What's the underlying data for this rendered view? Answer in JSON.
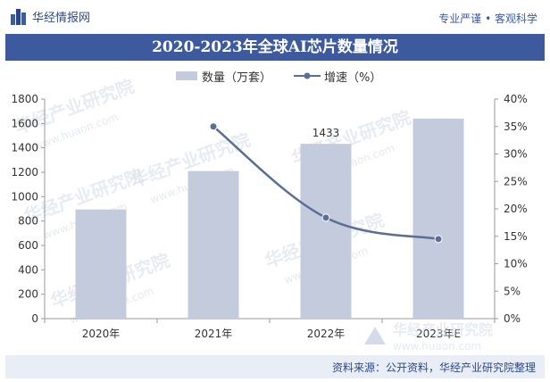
{
  "header": {
    "brand": "华经情报网",
    "slogan": "专业严谨 • 客观科学"
  },
  "colors": {
    "title_band": "#3d5a9e",
    "bar": "#c4cbdc",
    "line": "#5b6e96",
    "source_band": "#e9edf5"
  },
  "chart_data": {
    "type": "bar",
    "title": "2020-2023年全球AI芯片数量情况",
    "categories": [
      "2020年",
      "2021年",
      "2022年",
      "2023年E"
    ],
    "series": [
      {
        "name": "数量（万套）",
        "type": "bar",
        "axis": "left",
        "values": [
          895,
          1210,
          1433,
          1640
        ]
      },
      {
        "name": "增速（%）",
        "type": "line",
        "axis": "right",
        "values": [
          null,
          35.0,
          18.4,
          14.5
        ]
      }
    ],
    "data_labels": [
      {
        "category": "2022年",
        "text": "1433"
      }
    ],
    "left_axis": {
      "min": 0,
      "max": 1800,
      "ticks": [
        "0",
        "200",
        "400",
        "600",
        "800",
        "1000",
        "1200",
        "1400",
        "1600",
        "1800"
      ]
    },
    "right_axis": {
      "min": 0,
      "max": 40,
      "ticks": [
        "0%",
        "5%",
        "10%",
        "15%",
        "20%",
        "25%",
        "30%",
        "35%",
        "40%"
      ]
    },
    "grid": false,
    "legend_position": "top-center"
  },
  "watermark": {
    "text": "华经产业研究院",
    "url": "www.huaon.com",
    "logo_text": "华经产业研究院",
    "logo_url": "www.huaon.com"
  },
  "footer": {
    "source": "资料来源：公开资料，华经产业研究院整理"
  }
}
